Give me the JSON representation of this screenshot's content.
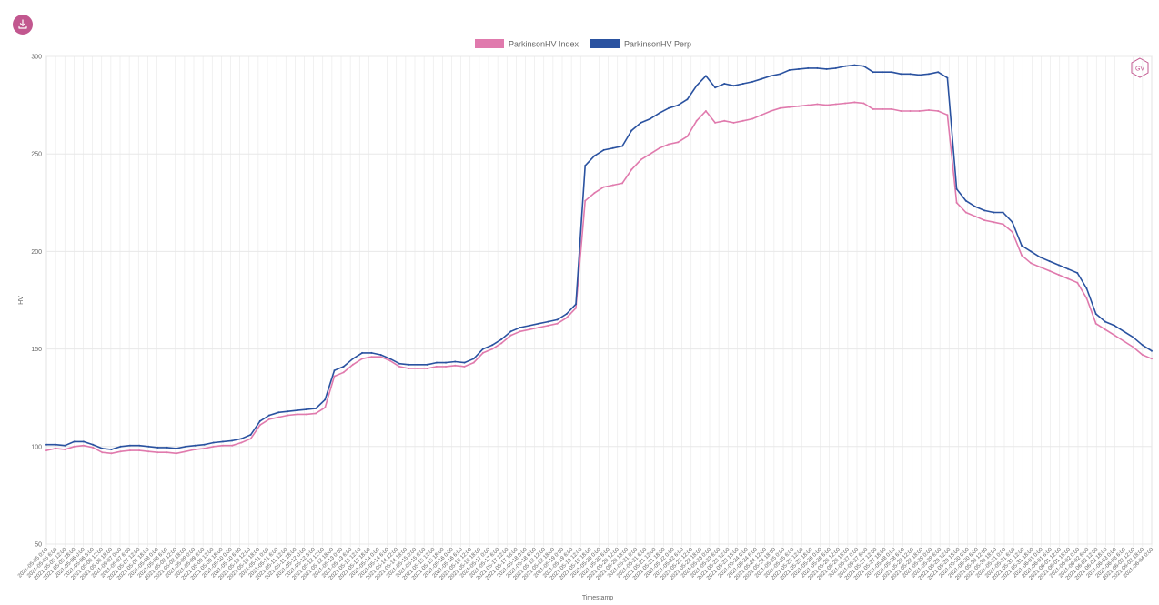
{
  "toolbar": {
    "download_icon": "download-icon"
  },
  "watermark": {
    "text": "GV",
    "icon": "hexagon-logo-icon"
  },
  "colors": {
    "index": "#e07aad",
    "perp": "#2a52a0",
    "grid": "#e8e8e8",
    "download_button": "#c2578f"
  },
  "chart_data": {
    "type": "line",
    "title": "",
    "xlabel": "Timestamp",
    "ylabel": "HV",
    "ylim": [
      50,
      300
    ],
    "yticks": [
      50,
      100,
      150,
      200,
      250,
      300
    ],
    "x_range": [
      "2021-05-05 0:00",
      "2021-06-03 22:00"
    ],
    "x_tick_step_hours": 6,
    "grid": true,
    "legend_position": "top-center",
    "series": [
      {
        "name": "ParkinsonHV Index",
        "color": "#e07aad",
        "values": [
          98,
          99,
          98.5,
          100,
          100.5,
          99.5,
          97,
          96.5,
          97.5,
          98,
          98,
          97.5,
          97,
          97,
          96.5,
          97.5,
          98.5,
          99,
          100,
          100.5,
          100.5,
          102,
          104,
          111,
          114,
          115,
          116,
          116.5,
          116.5,
          117,
          120,
          136,
          138,
          142,
          145,
          146,
          146,
          144,
          141,
          140,
          140,
          140,
          141,
          141,
          141.5,
          141,
          143,
          148,
          150,
          153,
          157,
          159,
          160,
          161,
          162,
          163,
          166,
          171,
          226,
          230,
          233,
          234,
          235,
          242,
          247,
          250,
          253,
          255,
          256,
          259,
          267,
          272,
          266,
          267,
          266,
          267,
          268,
          270,
          272,
          273.5,
          274,
          274.5,
          275,
          275.5,
          275,
          275.5,
          276,
          276.5,
          276,
          273,
          273,
          273,
          272,
          272,
          272,
          272.5,
          272,
          270,
          225,
          220,
          218,
          216,
          215,
          214,
          210,
          198,
          194,
          192,
          190,
          188,
          186,
          184,
          176,
          163,
          160,
          157,
          154,
          151,
          147,
          145
        ],
        "ticks_hours_per_point": 6
      },
      {
        "name": "ParkinsonHV Perp",
        "color": "#2a52a0",
        "values": [
          101,
          101,
          100.5,
          102.5,
          102.5,
          101,
          99,
          98.5,
          100,
          100.5,
          100.5,
          100,
          99.5,
          99.5,
          99,
          100,
          100.5,
          101,
          102,
          102.5,
          103,
          104,
          106,
          113,
          116,
          117.5,
          118,
          118.5,
          119,
          119.5,
          124,
          139,
          141,
          145,
          148,
          148,
          147,
          145,
          142.5,
          142,
          142,
          142,
          143,
          143,
          143.5,
          143,
          145,
          150,
          152,
          155,
          159,
          161,
          162,
          163,
          164,
          165,
          168,
          173,
          244,
          249,
          252,
          253,
          254,
          262,
          266,
          268,
          271,
          273.5,
          275,
          278,
          285,
          290,
          284,
          286,
          285,
          286,
          287,
          288.5,
          290,
          291,
          293,
          293.5,
          294,
          294,
          293.5,
          294,
          295,
          295.5,
          295,
          292,
          292,
          292,
          291,
          291,
          290.5,
          291,
          292,
          289,
          232,
          226,
          223,
          221,
          220,
          220,
          215,
          203,
          200,
          197,
          195,
          193,
          191,
          189,
          181,
          168,
          164,
          162,
          159,
          156,
          152,
          149
        ],
        "ticks_hours_per_point": 6
      }
    ]
  }
}
